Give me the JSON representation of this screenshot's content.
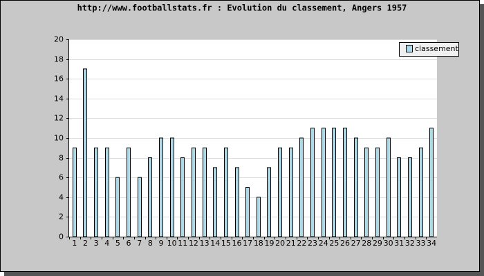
{
  "chart_data": {
    "type": "bar",
    "title": "http://www.footballstats.fr : Evolution du classement, Angers 1957",
    "categories": [
      "1",
      "2",
      "3",
      "4",
      "5",
      "6",
      "7",
      "8",
      "9",
      "10",
      "11",
      "12",
      "13",
      "14",
      "15",
      "16",
      "17",
      "18",
      "19",
      "20",
      "21",
      "22",
      "23",
      "24",
      "25",
      "26",
      "27",
      "28",
      "29",
      "30",
      "31",
      "32",
      "33",
      "34"
    ],
    "series": [
      {
        "name": "classement",
        "color": "#add8e6",
        "values": [
          9,
          17,
          9,
          9,
          6,
          9,
          6,
          8,
          10,
          10,
          8,
          9,
          9,
          7,
          9,
          7,
          5,
          4,
          7,
          9,
          9,
          10,
          11,
          11,
          11,
          11,
          10,
          9,
          9,
          10,
          8,
          8,
          9,
          11
        ]
      }
    ],
    "ylim": [
      0,
      20
    ],
    "yticks": [
      0,
      2,
      4,
      6,
      8,
      10,
      12,
      14,
      16,
      18,
      20
    ],
    "grid": true,
    "legend": "top-right"
  }
}
